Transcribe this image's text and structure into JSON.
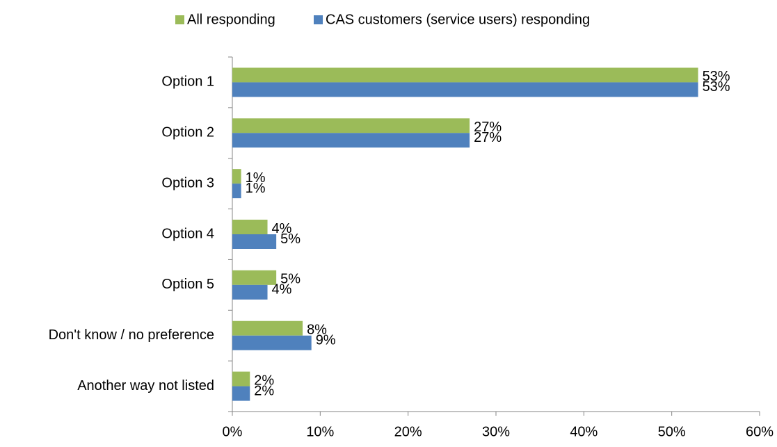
{
  "chart_data": {
    "type": "bar",
    "orientation": "horizontal",
    "categories": [
      "Option 1",
      "Option 2",
      "Option 3",
      "Option 4",
      "Option 5",
      "Don't know / no preference",
      "Another way not listed"
    ],
    "series": [
      {
        "name": "All responding",
        "color": "#9bbb59",
        "values": [
          53,
          27,
          1,
          4,
          5,
          8,
          2
        ],
        "value_labels": [
          "53%",
          "27%",
          "1%",
          "4%",
          "5%",
          "8%",
          "2%"
        ]
      },
      {
        "name": "CAS customers (service users) responding",
        "color": "#4f81bd",
        "values": [
          53,
          27,
          1,
          5,
          4,
          9,
          2
        ],
        "value_labels": [
          "53%",
          "27%",
          "1%",
          "5%",
          "4%",
          "9%",
          "2%"
        ]
      }
    ],
    "xlim": [
      0,
      60
    ],
    "xticks": [
      {
        "value": 0,
        "label": "0%"
      },
      {
        "value": 10,
        "label": "10%"
      },
      {
        "value": 20,
        "label": "20%"
      },
      {
        "value": 30,
        "label": "30%"
      },
      {
        "value": 40,
        "label": "40%"
      },
      {
        "value": 50,
        "label": "50%"
      },
      {
        "value": 60,
        "label": "60%"
      }
    ],
    "legend": "top",
    "grid": false
  }
}
